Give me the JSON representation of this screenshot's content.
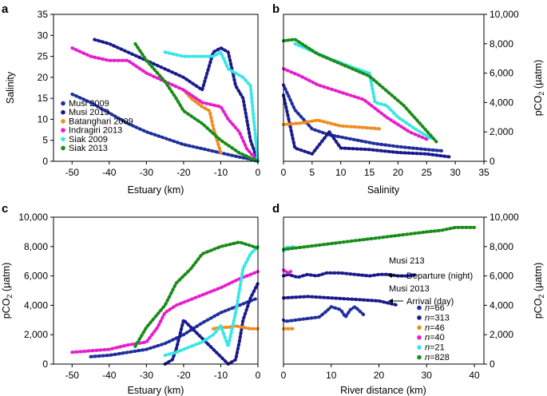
{
  "chart_data": [
    {
      "panel": "a",
      "type": "scatter",
      "title": "",
      "xlabel": "Estuary (km)",
      "ylabel": "Salinity",
      "xlim": [
        -55,
        0
      ],
      "ylim": [
        0,
        35
      ],
      "xticks": [
        "-50",
        "-40",
        "-30",
        "-20",
        "-10",
        "0"
      ],
      "yticks": [
        "0",
        "5",
        "10",
        "15",
        "20",
        "25",
        "30",
        "35"
      ],
      "legend": {
        "placement": "left",
        "entries": [
          "Musi 2009",
          "Musi 2013",
          "Batanghari 2009",
          "Indragiri 2013",
          "Siak 2009",
          "Siak 2013"
        ]
      },
      "series": [
        {
          "name": "Musi 2009",
          "color": "#1f2f9e",
          "x": [
            -50,
            -45,
            -40,
            -35,
            -30,
            -25,
            -20,
            -15,
            -10,
            -5,
            -2,
            0
          ],
          "y": [
            16,
            14,
            11.5,
            9,
            7,
            5.5,
            4,
            3,
            2,
            1,
            0.5,
            0
          ]
        },
        {
          "name": "Musi 2013",
          "color": "#1a1a8c",
          "x": [
            -44,
            -40,
            -35,
            -30,
            -25,
            -20,
            -15,
            -12,
            -10,
            -8,
            -6,
            -4,
            -2,
            0
          ],
          "y": [
            29,
            28,
            26,
            24,
            22,
            20,
            17,
            26,
            27,
            26,
            18,
            15,
            5,
            0
          ]
        },
        {
          "name": "Batanghari 2009",
          "color": "#f08c1e",
          "x": [
            -20,
            -18,
            -15,
            -13,
            -12,
            -11,
            -10
          ],
          "y": [
            17,
            15,
            13,
            12,
            8,
            5,
            2
          ]
        },
        {
          "name": "Indragiri 2013",
          "color": "#e81ccc",
          "x": [
            -50,
            -45,
            -40,
            -35,
            -30,
            -25,
            -20,
            -15,
            -10,
            -8,
            -5,
            -3,
            0
          ],
          "y": [
            27,
            25,
            24,
            24,
            21,
            19,
            17,
            14,
            13,
            10,
            7,
            3,
            0
          ]
        },
        {
          "name": "Siak 2009",
          "color": "#38e6e6",
          "x": [
            -25,
            -20,
            -15,
            -12,
            -10,
            -8,
            -6,
            -4,
            -2,
            0
          ],
          "y": [
            26,
            25,
            25,
            25,
            26,
            22,
            21,
            20,
            18,
            0
          ]
        },
        {
          "name": "Siak 2013",
          "color": "#1a8c1a",
          "x": [
            -33,
            -30,
            -25,
            -22,
            -20,
            -15,
            -10,
            -5,
            0
          ],
          "y": [
            28,
            24,
            19,
            15,
            12,
            9,
            5,
            2,
            0
          ]
        }
      ]
    },
    {
      "panel": "b",
      "type": "scatter",
      "title": "",
      "xlabel": "Salinity",
      "ylabel": "pCO2 (µatm)",
      "y_axis_side": "right",
      "xlim": [
        0,
        35
      ],
      "ylim": [
        0,
        10000
      ],
      "xticks": [
        "0",
        "5",
        "10",
        "15",
        "20",
        "25",
        "30",
        "35"
      ],
      "yticks": [
        "0",
        "2,000",
        "4,000",
        "6,000",
        "8,000",
        "10,000"
      ],
      "series": [
        {
          "name": "Musi 2009",
          "color": "#1f2f9e",
          "x": [
            0,
            2,
            5,
            8,
            12,
            16,
            20,
            25,
            28
          ],
          "y": [
            5200,
            3500,
            2200,
            1800,
            1500,
            1200,
            1000,
            800,
            700
          ]
        },
        {
          "name": "Musi 2013",
          "color": "#1a1a8c",
          "x": [
            0,
            2,
            5,
            8,
            10,
            15,
            20,
            25,
            29
          ],
          "y": [
            4500,
            900,
            500,
            2000,
            900,
            800,
            600,
            500,
            300
          ]
        },
        {
          "name": "Batanghari 2009",
          "color": "#f08c1e",
          "x": [
            0,
            3,
            6,
            10,
            14,
            17
          ],
          "y": [
            2500,
            2600,
            2800,
            2400,
            2300,
            2200
          ]
        },
        {
          "name": "Indragiri 2013",
          "color": "#e81ccc",
          "x": [
            0,
            3,
            6,
            10,
            14,
            18,
            22,
            25
          ],
          "y": [
            6300,
            5800,
            5200,
            4700,
            4200,
            3000,
            2000,
            1500
          ]
        },
        {
          "name": "Siak 2009",
          "color": "#38e6e6",
          "x": [
            2,
            5,
            8,
            12,
            15,
            16,
            18,
            20,
            23,
            26
          ],
          "y": [
            8000,
            7500,
            7000,
            6400,
            6000,
            4000,
            3800,
            3000,
            2200,
            1500
          ]
        },
        {
          "name": "Siak 2013",
          "color": "#1a8c1a",
          "x": [
            0,
            2,
            4,
            6,
            9,
            12,
            15,
            18,
            21,
            24,
            27
          ],
          "y": [
            8200,
            8300,
            7800,
            7300,
            6800,
            6300,
            5800,
            4800,
            3800,
            2500,
            1200
          ]
        }
      ]
    },
    {
      "panel": "c",
      "type": "scatter",
      "title": "",
      "xlabel": "Estuary (km)",
      "ylabel": "pCO2 (µatm)",
      "xlim": [
        -55,
        0
      ],
      "ylim": [
        0,
        10000
      ],
      "xticks": [
        "-50",
        "-40",
        "-30",
        "-20",
        "-10",
        "0"
      ],
      "yticks": [
        "0",
        "2,000",
        "4,000",
        "6,000",
        "8,000",
        "10,000"
      ],
      "series": [
        {
          "name": "Musi 2009",
          "color": "#1f2f9e",
          "x": [
            -45,
            -40,
            -35,
            -30,
            -25,
            -20,
            -15,
            -10,
            -5,
            0
          ],
          "y": [
            500,
            600,
            800,
            1000,
            1400,
            2000,
            2800,
            3500,
            4000,
            4500
          ]
        },
        {
          "name": "Musi 2013",
          "color": "#1a1a8c",
          "x": [
            -25,
            -23,
            -22,
            -21,
            -20,
            -8,
            -6,
            -5,
            -4,
            -2,
            0
          ],
          "y": [
            0,
            300,
            1000,
            2000,
            3000,
            0,
            300,
            1500,
            3000,
            4500,
            5500
          ]
        },
        {
          "name": "Batanghari 2009",
          "color": "#f08c1e",
          "x": [
            -12,
            -10,
            -8,
            -6,
            -4,
            -2,
            0
          ],
          "y": [
            2400,
            2500,
            2500,
            2600,
            2500,
            2400,
            2400
          ]
        },
        {
          "name": "Indragiri 2013",
          "color": "#e81ccc",
          "x": [
            -50,
            -45,
            -40,
            -35,
            -30,
            -27,
            -25,
            -22,
            -20,
            -15,
            -10,
            -5,
            0
          ],
          "y": [
            800,
            900,
            1000,
            1300,
            1500,
            2500,
            3500,
            4000,
            4200,
            4700,
            5200,
            5800,
            6300
          ]
        },
        {
          "name": "Siak 2009",
          "color": "#38e6e6",
          "x": [
            -25,
            -22,
            -20,
            -18,
            -15,
            -12,
            -10,
            -8,
            -6,
            -4,
            -2,
            0
          ],
          "y": [
            600,
            800,
            1000,
            1200,
            1500,
            2000,
            2600,
            1200,
            3500,
            6500,
            7500,
            8000
          ]
        },
        {
          "name": "Siak 2013",
          "color": "#1a8c1a",
          "x": [
            -33,
            -30,
            -25,
            -22,
            -20,
            -18,
            -15,
            -10,
            -5,
            0
          ],
          "y": [
            1200,
            2500,
            4000,
            5500,
            6000,
            6500,
            7500,
            8000,
            8300,
            7900
          ]
        }
      ]
    },
    {
      "panel": "d",
      "type": "scatter",
      "title": "",
      "xlabel": "River distance (km)",
      "ylabel": "pCO2 (µatm)",
      "y_axis_side": "right",
      "xlim": [
        0,
        42
      ],
      "ylim": [
        0,
        10000
      ],
      "xticks": [
        "0",
        "10",
        "20",
        "30",
        "40"
      ],
      "yticks": [
        "0",
        "2,000",
        "4,000",
        "6,000",
        "8,000",
        "10,000"
      ],
      "annotations": [
        {
          "label": "Musi 213",
          "text": "Departure (night)"
        },
        {
          "label": "Musi 2013",
          "text": "Arrival (day)"
        }
      ],
      "legend": {
        "placement": "lower-right",
        "entries": [
          "n=66",
          "n=313",
          "n=46",
          "n=40",
          "n=21",
          "n=828"
        ],
        "n_values": [
          66,
          313,
          46,
          40,
          21,
          828
        ]
      },
      "series": [
        {
          "name": "Musi 2009",
          "color": "#1f2f9e",
          "x": [
            0,
            0.3,
            7.5,
            9,
            10,
            12,
            13,
            14,
            15,
            16,
            17
          ],
          "y": [
            3000,
            2900,
            3200,
            3600,
            3900,
            3700,
            3200,
            3700,
            3900,
            3600,
            3300
          ]
        },
        {
          "name": "Musi 2013 (departure)",
          "color": "#1a1a8c",
          "x": [
            0,
            1,
            2,
            3,
            5,
            7,
            9,
            12,
            15,
            18,
            20,
            22,
            24,
            26,
            28
          ],
          "y": [
            6000,
            6100,
            6000,
            5900,
            6100,
            6000,
            6200,
            6200,
            6100,
            6000,
            6100,
            6100,
            6000,
            6000,
            6100
          ]
        },
        {
          "name": "Musi 2013 (arrival)",
          "color": "#1a1a8c",
          "x": [
            0,
            5,
            10,
            15,
            20,
            24
          ],
          "y": [
            4500,
            4600,
            4500,
            4400,
            4300,
            4000
          ]
        },
        {
          "name": "Batanghari 2009",
          "color": "#f08c1e",
          "x": [
            0,
            1,
            2
          ],
          "y": [
            2400,
            2400,
            2400
          ]
        },
        {
          "name": "Indragiri 2013",
          "color": "#e81ccc",
          "x": [
            0,
            0.5,
            1,
            1.5
          ],
          "y": [
            6400,
            6300,
            6200,
            6300
          ]
        },
        {
          "name": "Siak 2009",
          "color": "#38e6e6",
          "x": [
            0,
            0.5,
            1,
            1.5,
            2
          ],
          "y": [
            7700,
            7900,
            8000,
            7900,
            8000
          ]
        },
        {
          "name": "Siak 2013",
          "color": "#1a8c1a",
          "x": [
            0,
            5,
            10,
            15,
            20,
            25,
            30,
            33,
            36,
            40
          ],
          "y": [
            7800,
            8000,
            8200,
            8400,
            8600,
            8800,
            9000,
            9100,
            9300,
            9300
          ]
        }
      ]
    }
  ]
}
